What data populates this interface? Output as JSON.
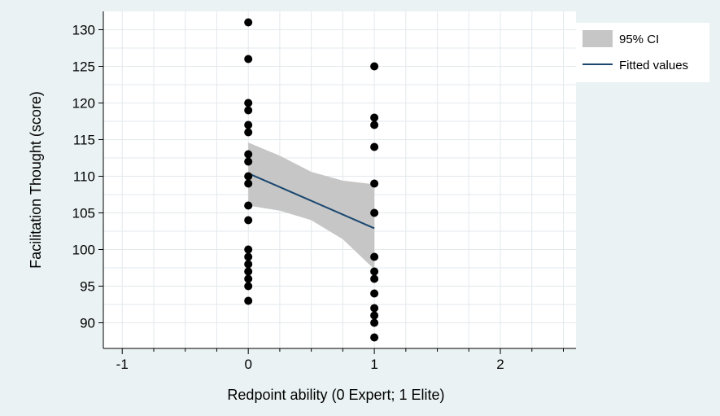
{
  "chart_data": {
    "type": "scatter",
    "xlabel": "Redpoint ability (0 Expert; 1 Elite)",
    "ylabel": "Facilitation Thought (score)",
    "xlim": [
      -1.15,
      2.6
    ],
    "ylim": [
      86.5,
      132.5
    ],
    "xticks": [
      -1,
      0,
      1,
      2
    ],
    "yticks": [
      90,
      95,
      100,
      105,
      110,
      115,
      120,
      125,
      130
    ],
    "grid": true,
    "legend_position": "right",
    "legend": [
      {
        "label": "95% CI",
        "kind": "band",
        "color": "#c6c6c6"
      },
      {
        "label": "Fitted values",
        "kind": "line",
        "color": "#1a476f"
      }
    ],
    "series": [
      {
        "kind": "points",
        "color": "#000000",
        "points": [
          [
            0,
            131
          ],
          [
            0,
            126
          ],
          [
            0,
            120
          ],
          [
            0,
            119
          ],
          [
            0,
            117
          ],
          [
            0,
            116
          ],
          [
            0,
            113
          ],
          [
            0,
            112
          ],
          [
            0,
            110
          ],
          [
            0,
            109
          ],
          [
            0,
            106
          ],
          [
            0,
            104
          ],
          [
            0,
            100
          ],
          [
            0,
            99
          ],
          [
            0,
            98
          ],
          [
            0,
            97
          ],
          [
            0,
            96
          ],
          [
            0,
            95
          ],
          [
            0,
            93
          ],
          [
            1,
            125
          ],
          [
            1,
            118
          ],
          [
            1,
            117
          ],
          [
            1,
            114
          ],
          [
            1,
            109
          ],
          [
            1,
            105
          ],
          [
            1,
            99
          ],
          [
            1,
            97
          ],
          [
            1,
            96
          ],
          [
            1,
            94
          ],
          [
            1,
            92
          ],
          [
            1,
            91
          ],
          [
            1,
            90
          ],
          [
            1,
            88
          ]
        ]
      },
      {
        "kind": "ci_band",
        "name": "95% CI",
        "color": "#c6c6c6",
        "x": [
          0,
          0.25,
          0.5,
          0.75,
          1
        ],
        "lower": [
          106.0,
          105.3,
          104.0,
          101.4,
          97.3
        ],
        "upper": [
          114.6,
          112.8,
          110.6,
          109.4,
          108.9
        ]
      },
      {
        "kind": "fitted_line",
        "name": "Fitted values",
        "color": "#1a476f",
        "x": [
          0,
          1
        ],
        "y": [
          110.4,
          102.9
        ]
      }
    ]
  }
}
